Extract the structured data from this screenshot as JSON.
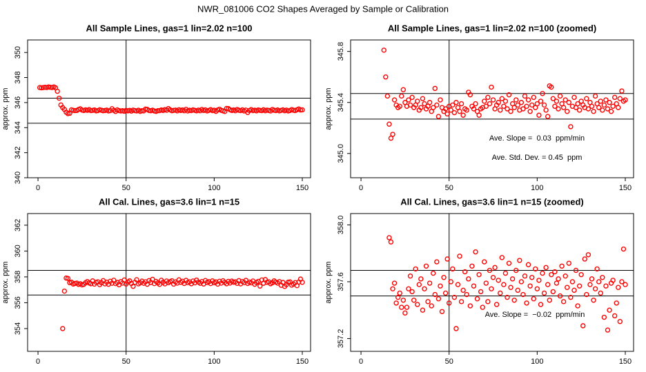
{
  "title": "NWR_081006  CO2 Shapes Averaged by Sample or Calibration",
  "chart_data": [
    {
      "type": "scatter",
      "title": "All Sample Lines, gas=1 lin=2.02 n=100",
      "y_label": "approx. ppm",
      "color": "#ff0000",
      "xlim": [
        -5.9,
        154.7
      ],
      "xticks": [
        0,
        50,
        100,
        150
      ],
      "ylim": [
        340,
        351
      ],
      "yticks": [
        340,
        342,
        344,
        346,
        348,
        350
      ],
      "hlines": [
        346.35,
        344.35
      ],
      "vlines": [
        50
      ],
      "annotations": [],
      "x": [
        1,
        2,
        3,
        4,
        5,
        6,
        7,
        8,
        9,
        10,
        11,
        12,
        13,
        14,
        15,
        16,
        17,
        18,
        19,
        20,
        21,
        22,
        23,
        24,
        25,
        26,
        27,
        28,
        29,
        30,
        31,
        32,
        33,
        34,
        35,
        36,
        37,
        38,
        39,
        40,
        41,
        42,
        43,
        44,
        45,
        46,
        47,
        48,
        49,
        50,
        51,
        52,
        53,
        54,
        55,
        56,
        57,
        58,
        59,
        60,
        61,
        62,
        63,
        64,
        65,
        66,
        67,
        68,
        69,
        70,
        71,
        72,
        73,
        74,
        75,
        76,
        77,
        78,
        79,
        80,
        81,
        82,
        83,
        84,
        85,
        86,
        87,
        88,
        89,
        90,
        91,
        92,
        93,
        94,
        95,
        96,
        97,
        98,
        99,
        100,
        101,
        102,
        103,
        104,
        105,
        106,
        107,
        108,
        109,
        110,
        111,
        112,
        113,
        114,
        115,
        116,
        117,
        118,
        119,
        120,
        121,
        122,
        123,
        124,
        125,
        126,
        127,
        128,
        129,
        130,
        131,
        132,
        133,
        134,
        135,
        136,
        137,
        138,
        139,
        140,
        141,
        142,
        143,
        144,
        145,
        146,
        147,
        148,
        149,
        150
      ],
      "values": [
        347.2,
        347.18,
        347.2,
        347.22,
        347.2,
        347.25,
        347.22,
        347.2,
        347.25,
        347.18,
        346.9,
        346.35,
        345.81,
        345.6,
        345.45,
        345.23,
        345.12,
        345.15,
        345.42,
        345.38,
        345.36,
        345.37,
        345.45,
        345.5,
        345.4,
        345.37,
        345.42,
        345.38,
        345.44,
        345.36,
        345.38,
        345.41,
        345.34,
        345.36,
        345.43,
        345.39,
        345.35,
        345.37,
        345.4,
        345.33,
        345.36,
        345.51,
        345.38,
        345.29,
        345.42,
        345.36,
        345.33,
        345.35,
        345.31,
        345.37,
        345.34,
        345.38,
        345.32,
        345.4,
        345.36,
        345.33,
        345.39,
        345.3,
        345.35,
        345.34,
        345.48,
        345.46,
        345.37,
        345.35,
        345.39,
        345.33,
        345.3,
        345.35,
        345.36,
        345.41,
        345.37,
        345.44,
        345.39,
        345.52,
        345.42,
        345.35,
        345.38,
        345.4,
        345.34,
        345.43,
        345.37,
        345.41,
        345.35,
        345.46,
        345.33,
        345.39,
        345.36,
        345.42,
        345.38,
        345.34,
        345.4,
        345.35,
        345.45,
        345.37,
        345.42,
        345.33,
        345.38,
        345.44,
        345.36,
        345.39,
        345.3,
        345.41,
        345.47,
        345.38,
        345.34,
        345.29,
        345.53,
        345.52,
        345.43,
        345.37,
        345.41,
        345.35,
        345.45,
        345.39,
        345.36,
        345.42,
        345.33,
        345.4,
        345.21,
        345.37,
        345.44,
        345.36,
        345.39,
        345.34,
        345.41,
        345.38,
        345.36,
        345.43,
        345.35,
        345.4,
        345.37,
        345.33,
        345.45,
        345.39,
        345.36,
        345.41,
        345.34,
        345.38,
        345.42,
        345.35,
        345.4,
        345.33,
        345.37,
        345.44,
        345.39,
        345.36,
        345.43,
        345.49,
        345.41,
        345.42
      ]
    },
    {
      "type": "scatter",
      "title": "All Sample Lines, gas=1 lin=2.02 n=100 (zoomed)",
      "y_label": "approx. ppm",
      "color": "#ff0000",
      "xlim": [
        -5.9,
        154.7
      ],
      "xticks": [
        0,
        50,
        100,
        150
      ],
      "ylim": [
        344.81,
        345.89
      ],
      "yticks": [
        {
          "value": 345,
          "label": "345.0"
        },
        345.4,
        345.8
      ],
      "hlines": [
        345.47,
        345.27
      ],
      "vlines": [
        50
      ],
      "annotations": [
        "Ave. Slope =  0.03  ppm/min",
        "Ave. Std. Dev. = 0.45  ppm"
      ],
      "x": [
        13,
        14,
        15,
        16,
        17,
        18,
        19,
        20,
        21,
        22,
        23,
        24,
        25,
        26,
        27,
        28,
        29,
        30,
        31,
        32,
        33,
        34,
        35,
        36,
        37,
        38,
        39,
        40,
        41,
        42,
        43,
        44,
        45,
        46,
        47,
        48,
        49,
        50,
        51,
        52,
        53,
        54,
        55,
        56,
        57,
        58,
        59,
        60,
        61,
        62,
        63,
        64,
        65,
        66,
        67,
        68,
        69,
        70,
        71,
        72,
        73,
        74,
        75,
        76,
        77,
        78,
        79,
        80,
        81,
        82,
        83,
        84,
        85,
        86,
        87,
        88,
        89,
        90,
        91,
        92,
        93,
        94,
        95,
        96,
        97,
        98,
        99,
        100,
        101,
        102,
        103,
        104,
        105,
        106,
        107,
        108,
        109,
        110,
        111,
        112,
        113,
        114,
        115,
        116,
        117,
        118,
        119,
        120,
        121,
        122,
        123,
        124,
        125,
        126,
        127,
        128,
        129,
        130,
        131,
        132,
        133,
        134,
        135,
        136,
        137,
        138,
        139,
        140,
        141,
        142,
        143,
        144,
        145,
        146,
        147,
        148,
        149,
        150
      ],
      "values": [
        345.81,
        345.6,
        345.45,
        345.23,
        345.12,
        345.15,
        345.42,
        345.38,
        345.36,
        345.37,
        345.45,
        345.5,
        345.4,
        345.37,
        345.42,
        345.38,
        345.44,
        345.36,
        345.38,
        345.41,
        345.34,
        345.36,
        345.43,
        345.39,
        345.35,
        345.37,
        345.4,
        345.33,
        345.36,
        345.51,
        345.38,
        345.29,
        345.42,
        345.36,
        345.33,
        345.35,
        345.31,
        345.37,
        345.34,
        345.38,
        345.32,
        345.4,
        345.36,
        345.33,
        345.39,
        345.3,
        345.35,
        345.34,
        345.48,
        345.46,
        345.37,
        345.35,
        345.39,
        345.33,
        345.3,
        345.35,
        345.36,
        345.41,
        345.37,
        345.44,
        345.39,
        345.52,
        345.42,
        345.35,
        345.38,
        345.4,
        345.34,
        345.43,
        345.37,
        345.41,
        345.35,
        345.46,
        345.33,
        345.39,
        345.36,
        345.42,
        345.38,
        345.34,
        345.4,
        345.35,
        345.45,
        345.37,
        345.42,
        345.33,
        345.38,
        345.44,
        345.36,
        345.39,
        345.3,
        345.41,
        345.47,
        345.38,
        345.34,
        345.29,
        345.53,
        345.52,
        345.43,
        345.37,
        345.41,
        345.35,
        345.45,
        345.39,
        345.36,
        345.42,
        345.33,
        345.4,
        345.21,
        345.37,
        345.44,
        345.36,
        345.39,
        345.34,
        345.41,
        345.38,
        345.36,
        345.43,
        345.35,
        345.4,
        345.37,
        345.33,
        345.45,
        345.39,
        345.36,
        345.41,
        345.34,
        345.38,
        345.42,
        345.35,
        345.4,
        345.33,
        345.37,
        345.44,
        345.39,
        345.36,
        345.43,
        345.49,
        345.41,
        345.42
      ]
    },
    {
      "type": "scatter",
      "title": "All Cal. Lines, gas=3.6 lin=1 n=15",
      "y_label": "approx. ppm",
      "color": "#ff0000",
      "xlim": [
        -5.9,
        154.7
      ],
      "xticks": [
        0,
        50,
        100,
        150
      ],
      "ylim": [
        352.24,
        362.9
      ],
      "yticks": [
        354,
        356,
        358,
        360,
        362
      ],
      "hlines": [
        358.5,
        356.6
      ],
      "vlines": [
        50
      ],
      "annotations": [],
      "x": [
        14,
        15,
        16,
        17,
        18,
        19,
        20,
        21,
        22,
        23,
        24,
        25,
        26,
        27,
        28,
        29,
        30,
        31,
        32,
        33,
        34,
        35,
        36,
        37,
        38,
        39,
        40,
        41,
        42,
        43,
        44,
        45,
        46,
        47,
        48,
        49,
        50,
        51,
        52,
        53,
        54,
        55,
        56,
        57,
        58,
        59,
        60,
        61,
        62,
        63,
        64,
        65,
        66,
        67,
        68,
        69,
        70,
        71,
        72,
        73,
        74,
        75,
        76,
        77,
        78,
        79,
        80,
        81,
        82,
        83,
        84,
        85,
        86,
        87,
        88,
        89,
        90,
        91,
        92,
        93,
        94,
        95,
        96,
        97,
        98,
        99,
        100,
        101,
        102,
        103,
        104,
        105,
        106,
        107,
        108,
        109,
        110,
        111,
        112,
        113,
        114,
        115,
        116,
        117,
        118,
        119,
        120,
        121,
        122,
        123,
        124,
        125,
        126,
        127,
        128,
        129,
        130,
        131,
        132,
        133,
        134,
        135,
        136,
        137,
        138,
        139,
        140,
        141,
        142,
        143,
        144,
        145,
        146,
        147,
        148,
        149,
        150
      ],
      "values": [
        354,
        356.9,
        357.91,
        357.88,
        357.55,
        357.59,
        357.45,
        357.49,
        357.52,
        357.42,
        357.47,
        357.38,
        357.42,
        357.55,
        357.64,
        357.53,
        357.47,
        357.69,
        357.44,
        357.58,
        357.62,
        357.4,
        357.55,
        357.71,
        357.46,
        357.59,
        357.43,
        357.66,
        357.51,
        357.74,
        357.48,
        357.57,
        357.39,
        357.63,
        357.52,
        357.76,
        357.45,
        357.6,
        357.69,
        357.49,
        357.27,
        357.58,
        357.78,
        357.46,
        357.54,
        357.67,
        357.51,
        357.62,
        357.43,
        357.71,
        357.57,
        357.81,
        357.48,
        357.65,
        357.53,
        357.42,
        357.74,
        357.59,
        357.46,
        357.68,
        357.55,
        357.63,
        357.7,
        357.44,
        357.61,
        357.52,
        357.77,
        357.58,
        357.66,
        357.49,
        357.73,
        357.56,
        357.62,
        357.47,
        357.68,
        357.54,
        357.75,
        357.6,
        357.51,
        357.64,
        357.45,
        357.72,
        357.57,
        357.63,
        357.48,
        357.69,
        357.55,
        357.61,
        357.44,
        357.66,
        357.52,
        357.7,
        357.58,
        357.47,
        357.65,
        357.53,
        357.67,
        357.59,
        357.62,
        357.5,
        357.71,
        357.46,
        357.64,
        357.56,
        357.73,
        357.49,
        357.6,
        357.54,
        357.68,
        357.43,
        357.57,
        357.65,
        357.29,
        357.76,
        357.51,
        357.79,
        357.58,
        357.62,
        357.47,
        357.55,
        357.69,
        357.6,
        357.52,
        357.63,
        357.35,
        357.57,
        357.26,
        357.4,
        357.59,
        357.61,
        357.36,
        357.45,
        357.56,
        357.32,
        357.6,
        357.83,
        357.58
      ]
    },
    {
      "type": "scatter",
      "title": "All Cal. Lines, gas=3.6 lin=1 n=15 (zoomed)",
      "y_label": "approx. ppm",
      "color": "#ff0000",
      "xlim": [
        -5.9,
        154.7
      ],
      "xticks": [
        0,
        50,
        100,
        150
      ],
      "ylim": [
        357.11,
        358.08
      ],
      "yticks": [
        357.2,
        357.6,
        {
          "value": 358,
          "label": "358.0"
        }
      ],
      "hlines": [
        357.68,
        357.5
      ],
      "vlines": [
        50
      ],
      "annotations": [
        "Ave. Slope =  −0.02  ppm/min"
      ],
      "x": [
        16,
        17,
        18,
        19,
        20,
        21,
        22,
        23,
        24,
        25,
        26,
        27,
        28,
        29,
        30,
        31,
        32,
        33,
        34,
        35,
        36,
        37,
        38,
        39,
        40,
        41,
        42,
        43,
        44,
        45,
        46,
        47,
        48,
        49,
        50,
        51,
        52,
        53,
        54,
        55,
        56,
        57,
        58,
        59,
        60,
        61,
        62,
        63,
        64,
        65,
        66,
        67,
        68,
        69,
        70,
        71,
        72,
        73,
        74,
        75,
        76,
        77,
        78,
        79,
        80,
        81,
        82,
        83,
        84,
        85,
        86,
        87,
        88,
        89,
        90,
        91,
        92,
        93,
        94,
        95,
        96,
        97,
        98,
        99,
        100,
        101,
        102,
        103,
        104,
        105,
        106,
        107,
        108,
        109,
        110,
        111,
        112,
        113,
        114,
        115,
        116,
        117,
        118,
        119,
        120,
        121,
        122,
        123,
        124,
        125,
        126,
        127,
        128,
        129,
        130,
        131,
        132,
        133,
        134,
        135,
        136,
        137,
        138,
        139,
        140,
        141,
        142,
        143,
        144,
        145,
        146,
        147,
        148,
        149,
        150
      ],
      "values": [
        357.91,
        357.88,
        357.55,
        357.59,
        357.45,
        357.49,
        357.52,
        357.42,
        357.47,
        357.38,
        357.42,
        357.55,
        357.64,
        357.53,
        357.47,
        357.69,
        357.44,
        357.58,
        357.62,
        357.4,
        357.55,
        357.71,
        357.46,
        357.59,
        357.43,
        357.66,
        357.51,
        357.74,
        357.48,
        357.57,
        357.39,
        357.63,
        357.52,
        357.76,
        357.45,
        357.6,
        357.69,
        357.49,
        357.27,
        357.58,
        357.78,
        357.46,
        357.54,
        357.67,
        357.51,
        357.62,
        357.43,
        357.71,
        357.57,
        357.81,
        357.48,
        357.65,
        357.53,
        357.42,
        357.74,
        357.59,
        357.46,
        357.68,
        357.55,
        357.63,
        357.7,
        357.44,
        357.61,
        357.52,
        357.77,
        357.58,
        357.66,
        357.49,
        357.73,
        357.56,
        357.62,
        357.47,
        357.68,
        357.54,
        357.75,
        357.6,
        357.51,
        357.64,
        357.45,
        357.72,
        357.57,
        357.63,
        357.48,
        357.69,
        357.55,
        357.61,
        357.44,
        357.66,
        357.52,
        357.7,
        357.58,
        357.47,
        357.65,
        357.53,
        357.67,
        357.59,
        357.62,
        357.5,
        357.71,
        357.46,
        357.64,
        357.56,
        357.73,
        357.49,
        357.6,
        357.54,
        357.68,
        357.43,
        357.57,
        357.65,
        357.29,
        357.76,
        357.51,
        357.79,
        357.58,
        357.62,
        357.47,
        357.55,
        357.69,
        357.6,
        357.52,
        357.63,
        357.35,
        357.57,
        357.26,
        357.4,
        357.59,
        357.61,
        357.36,
        357.45,
        357.56,
        357.32,
        357.6,
        357.83,
        357.58
      ]
    }
  ]
}
